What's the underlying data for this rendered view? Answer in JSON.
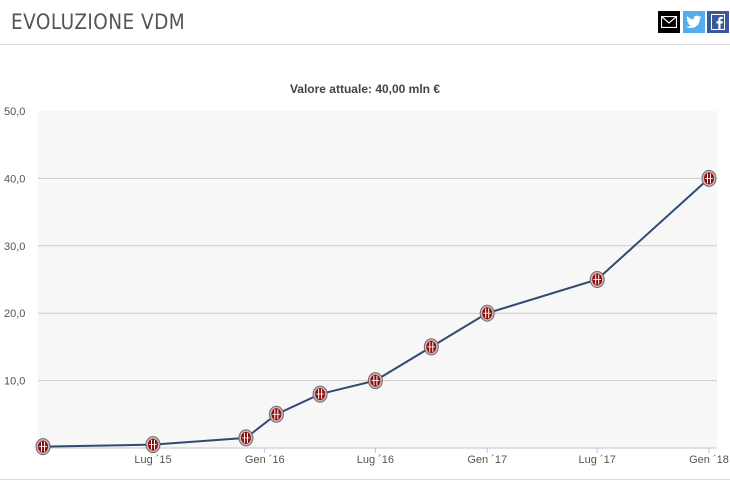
{
  "header": {
    "title": "EVOLUZIONE VDM",
    "share_icons": [
      "mail-icon",
      "twitter-icon",
      "facebook-icon"
    ]
  },
  "colors": {
    "line": "#2f4a73",
    "marker": "#8b0d0d",
    "plot_bg": "#f7f7f7",
    "grid": "#cccccc",
    "axis": "#b7c7da"
  },
  "chart_data": {
    "type": "line",
    "title": "Valore attuale: 40,00 mln €",
    "xlabel": "",
    "ylabel": "",
    "ylim": [
      0,
      50
    ],
    "yticks": [
      "50,0",
      "40,0",
      "30,0",
      "20,0",
      "10,0"
    ],
    "yticks_values": [
      50,
      40,
      30,
      20,
      10
    ],
    "grid": true,
    "legend": "none",
    "xlim": [
      "2015-01-01",
      "2018-01-01"
    ],
    "xticks": [
      {
        "label": "Lug ´15",
        "date": "2015-07-01"
      },
      {
        "label": "Gen ´16",
        "date": "2016-01-01"
      },
      {
        "label": "Lug ´16",
        "date": "2016-07-01"
      },
      {
        "label": "Gen ´17",
        "date": "2017-01-01"
      },
      {
        "label": "Lug ´17",
        "date": "2017-07-01"
      },
      {
        "label": "Gen ´18",
        "date": "2018-01-01"
      }
    ],
    "points": [
      {
        "x": "2015-01-01",
        "y": 0.2
      },
      {
        "x": "2015-07-01",
        "y": 0.5
      },
      {
        "x": "2015-12-01",
        "y": 1.5
      },
      {
        "x": "2016-01-20",
        "y": 5.0
      },
      {
        "x": "2016-04-01",
        "y": 8.0
      },
      {
        "x": "2016-07-01",
        "y": 10.0
      },
      {
        "x": "2016-10-01",
        "y": 15.0
      },
      {
        "x": "2017-01-01",
        "y": 20.0
      },
      {
        "x": "2017-07-01",
        "y": 25.0
      },
      {
        "x": "2018-01-01",
        "y": 40.0
      }
    ]
  }
}
